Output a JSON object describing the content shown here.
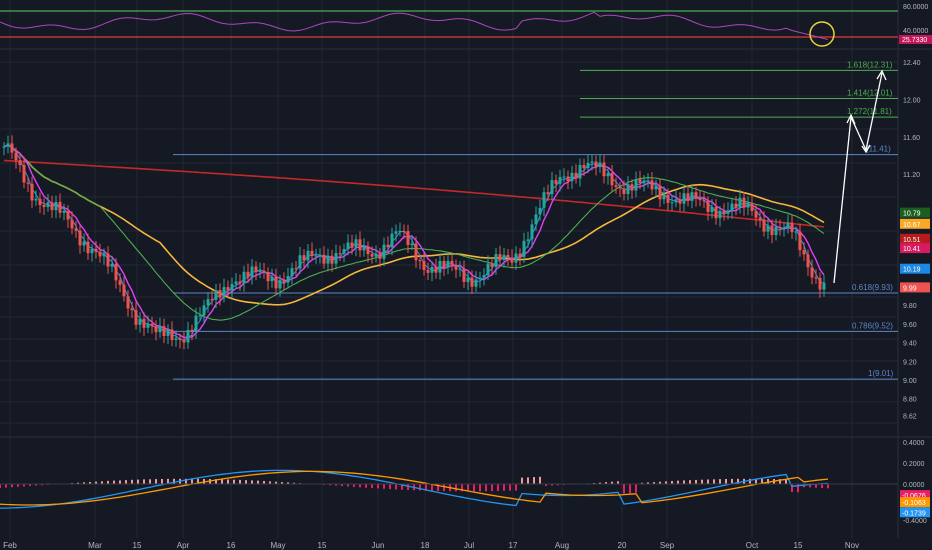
{
  "colors": {
    "background": "#151924",
    "grid": "#242833",
    "axis_text": "#b2b5be",
    "candle_up": "#26a69a",
    "candle_down": "#ef5350",
    "ema_fast": "#e040fb",
    "ema_slow_green": "#4caf50",
    "ma_yellow": "#f5b83b",
    "ma_red": "#c62828",
    "fib_main": "#5b86c7",
    "fib_ext": "#4caf50",
    "rsi_line": "#ab47bc",
    "macd_line": "#2196f3",
    "signal_line": "#ff9800",
    "arrow": "#ffffff",
    "circle": "#e6d53a"
  },
  "rsi_panel": {
    "upper_level_label": "80.0000",
    "lower_level_label": "40.0000",
    "last_value_label": "25.7330",
    "annotation": "circle-highlight"
  },
  "price_axis": {
    "ticks": [
      "12.40",
      "12.00",
      "11.60",
      "11.20",
      "10.80",
      "10.40",
      "10.00",
      "9.80",
      "9.60",
      "9.40",
      "9.20",
      "9.00",
      "8.80",
      "8.62"
    ]
  },
  "price_badges": [
    {
      "label": "10.79",
      "color": "#1b5e20"
    },
    {
      "label": "10.67",
      "color": "#f9a825"
    },
    {
      "label": "10.51",
      "color": "#b71c1c"
    },
    {
      "label": "10.41",
      "color": "#d81b60"
    },
    {
      "label": "10.19",
      "color": "#1e88e5"
    },
    {
      "label": "9.99",
      "color": "#ef5350"
    }
  ],
  "fib_levels": [
    {
      "label": "0.618(9.93)",
      "value": 9.93,
      "kind": "main"
    },
    {
      "label": "0.786(9.52)",
      "value": 9.52,
      "kind": "main"
    },
    {
      "label": "1(9.01)",
      "value": 9.01,
      "kind": "main"
    },
    {
      "label": "(11.41)",
      "value": 11.41,
      "kind": "main"
    },
    {
      "label": "1.272(11.81)",
      "value": 11.81,
      "kind": "ext"
    },
    {
      "label": "1.414(12.01)",
      "value": 12.01,
      "kind": "ext"
    },
    {
      "label": "1.618(12.31)",
      "value": 12.31,
      "kind": "ext"
    }
  ],
  "macd_panel": {
    "ticks": [
      "0.4000",
      "0.2000",
      "0.0000",
      "-0.2000"
    ],
    "badges": [
      {
        "label": "-0.0676",
        "color": "#e91e63"
      },
      {
        "label": "-0.1063",
        "color": "#ff9800"
      },
      {
        "label": "-0.1739",
        "color": "#2196f3"
      }
    ],
    "volume_label": "-0.4000"
  },
  "x_axis": {
    "labels": [
      "Feb",
      "Mar",
      "15",
      "Apr",
      "16",
      "May",
      "15",
      "Jun",
      "18",
      "Jul",
      "17",
      "Aug",
      "20",
      "Sep",
      "Oct",
      "15",
      "Nov"
    ]
  },
  "chart_data": {
    "type": "candlestick",
    "title": "",
    "xlabel": "",
    "ylabel": "",
    "ylim": [
      8.55,
      12.55
    ],
    "grid": true,
    "x": [
      "Feb",
      "Mar",
      "15",
      "Apr",
      "16",
      "May",
      "15",
      "Jun",
      "18",
      "Jul",
      "17",
      "Aug",
      "20",
      "Sep",
      "Oct",
      "15",
      "Nov"
    ],
    "close_path": [
      [
        "Feb",
        11.5
      ],
      [
        "Feb",
        11.05
      ],
      [
        "Mar",
        10.4
      ],
      [
        "15",
        9.7
      ],
      [
        "15",
        9.45
      ],
      [
        "Apr",
        9.5
      ],
      [
        "Apr",
        9.7
      ],
      [
        "16",
        10.1
      ],
      [
        "May",
        10.1
      ],
      [
        "15",
        10.2
      ],
      [
        "15",
        10.35
      ],
      [
        "Jun",
        10.4
      ],
      [
        "Jun",
        10.55
      ],
      [
        "18",
        10.25
      ],
      [
        "Jul",
        10.1
      ],
      [
        "17",
        10.3
      ],
      [
        "17",
        10.7
      ],
      [
        "Aug",
        11.2
      ],
      [
        "Aug",
        11.3
      ],
      [
        "20",
        11.1
      ],
      [
        "Sep",
        11.0
      ],
      [
        "Sep",
        10.9
      ],
      [
        "Oct",
        10.8
      ],
      [
        "Oct",
        10.65
      ],
      [
        "15",
        10.55
      ],
      [
        "15",
        10.19
      ],
      [
        "15",
        9.99
      ]
    ],
    "series": [
      {
        "name": "",
        "type": "ma_red",
        "last": 10.51
      },
      {
        "name": "",
        "type": "ma_yellow",
        "last": 10.67
      },
      {
        "name": "",
        "type": "ma_green",
        "last": 10.79
      },
      {
        "name": "",
        "type": "ema_magenta",
        "last": 10.41
      },
      {
        "name": "",
        "type": "ema_blue",
        "last": 10.19
      }
    ],
    "last_price": 9.99,
    "fib_levels": [
      9.01,
      9.52,
      9.93,
      11.41,
      11.81,
      12.01,
      12.31
    ]
  }
}
